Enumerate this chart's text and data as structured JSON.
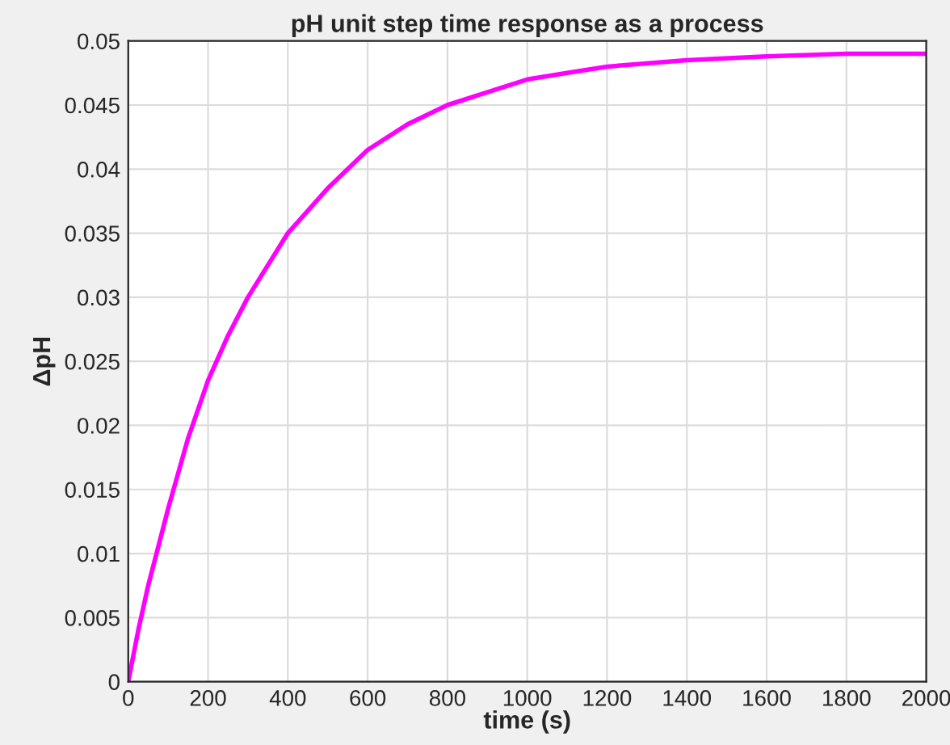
{
  "chart_data": {
    "type": "line",
    "title": "pH unit step time response as a process",
    "xlabel": "time (s)",
    "ylabel": "ΔpH",
    "x": [
      0,
      25,
      50,
      100,
      150,
      200,
      250,
      300,
      400,
      500,
      600,
      700,
      800,
      900,
      1000,
      1100,
      1200,
      1400,
      1600,
      1800,
      2000
    ],
    "series": [
      {
        "color": "#ff00ff",
        "values": [
          0,
          0.004,
          0.0075,
          0.0135,
          0.019,
          0.0235,
          0.027,
          0.03,
          0.035,
          0.0385,
          0.0415,
          0.0435,
          0.045,
          0.046,
          0.047,
          0.0475,
          0.048,
          0.0485,
          0.0488,
          0.049,
          0.049
        ]
      }
    ],
    "xlim": [
      0,
      2000
    ],
    "ylim": [
      0,
      0.05
    ],
    "xticks": [
      0,
      200,
      400,
      600,
      800,
      1000,
      1200,
      1400,
      1600,
      1800,
      2000
    ],
    "yticks": [
      0,
      0.005,
      0.01,
      0.015,
      0.02,
      0.025,
      0.03,
      0.035,
      0.04,
      0.045,
      0.05
    ],
    "grid": true,
    "legend": false
  }
}
